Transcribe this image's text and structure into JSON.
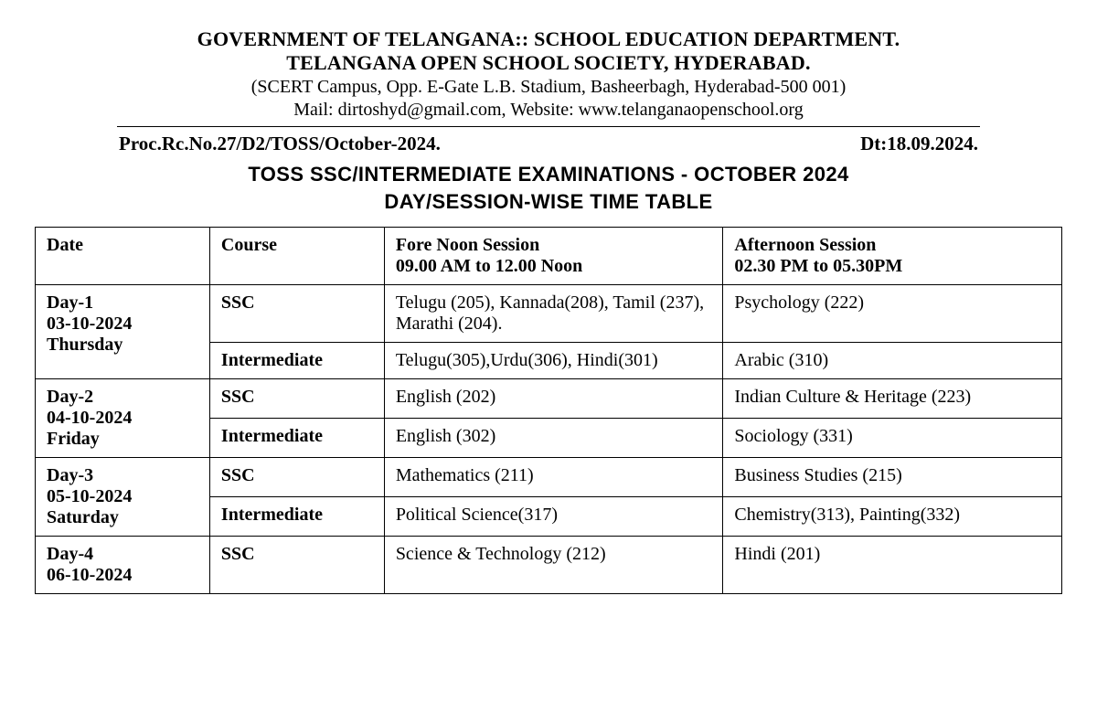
{
  "header": {
    "line1": "GOVERNMENT OF TELANGANA:: SCHOOL EDUCATION DEPARTMENT.",
    "line2": "TELANGANA OPEN SCHOOL SOCIETY, HYDERABAD.",
    "addr": "(SCERT Campus, Opp. E-Gate L.B. Stadium, Basheerbagh, Hyderabad-500 001)",
    "contact": "Mail: dirtoshyd@gmail.com, Website: www.telanganaopenschool.org",
    "proc": "Proc.Rc.No.27/D2/TOSS/October-2024.",
    "date": "Dt:18.09.2024."
  },
  "titles": {
    "t1": "TOSS SSC/INTERMEDIATE EXAMINATIONS - OCTOBER 2024",
    "t2": "DAY/SESSION-WISE TIME TABLE"
  },
  "table": {
    "columns": {
      "date": "Date",
      "course": "Course",
      "fn_title": "Fore Noon  Session",
      "fn_time": "09.00 AM to 12.00 Noon",
      "an_title": "Afternoon Session",
      "an_time": "02.30 PM to 05.30PM"
    },
    "col_widths_pct": [
      17,
      17,
      33,
      33
    ],
    "border_color": "#000000",
    "font_size_pt": 15,
    "days": [
      {
        "day": "Day-1",
        "date": "03-10-2024",
        "weekday": "Thursday",
        "rows": [
          {
            "course": "SSC",
            "fn": "Telugu (205), Kannada(208), Tamil (237), Marathi (204).",
            "an": "Psychology (222)"
          },
          {
            "course": "Intermediate",
            "fn": "Telugu(305),Urdu(306), Hindi(301)",
            "an": "Arabic (310)"
          }
        ]
      },
      {
        "day": "Day-2",
        "date": "04-10-2024",
        "weekday": "Friday",
        "rows": [
          {
            "course": "SSC",
            "fn": "English (202)",
            "an": "Indian Culture & Heritage (223)"
          },
          {
            "course": "Intermediate",
            "fn": "English (302)",
            "an": "Sociology (331)"
          }
        ]
      },
      {
        "day": "Day-3",
        "date": "05-10-2024",
        "weekday": "Saturday",
        "rows": [
          {
            "course": "SSC",
            "fn": "Mathematics (211)",
            "an": "Business Studies (215)"
          },
          {
            "course": "Intermediate",
            "fn": "Political Science(317)",
            "an": "Chemistry(313), Painting(332)"
          }
        ]
      },
      {
        "day": "Day-4",
        "date": "06-10-2024",
        "weekday": "",
        "rows": [
          {
            "course": "SSC",
            "fn": "Science & Technology (212)",
            "an": "Hindi (201)"
          }
        ]
      }
    ]
  }
}
